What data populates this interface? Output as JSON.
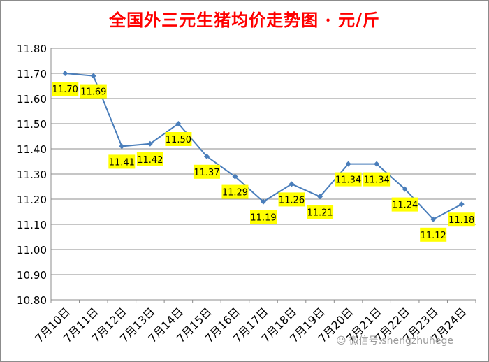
{
  "chart_data": {
    "type": "line",
    "title": "全国外三元生猪均价走势图 · 元/斤",
    "xlabel": "",
    "ylabel": "",
    "categories": [
      "7月10日",
      "7月11日",
      "7月12日",
      "7月13日",
      "7月14日",
      "7月15日",
      "7月16日",
      "7月17日",
      "7月18日",
      "7月19日",
      "7月20日",
      "7月21日",
      "7月22日",
      "7月23日",
      "7月24日"
    ],
    "series": [
      {
        "values": [
          11.7,
          11.69,
          11.41,
          11.42,
          11.5,
          11.37,
          11.29,
          11.19,
          11.26,
          11.21,
          11.34,
          11.34,
          11.24,
          11.12,
          11.18
        ],
        "labels": [
          "11.70",
          "11.69",
          "11.41",
          "11.42",
          "11.50",
          "11.37",
          "11.29",
          "11.19",
          "11.26",
          "11.21",
          "11.34",
          "11.34",
          "11.24",
          "11.12",
          "11.18"
        ]
      }
    ],
    "ylim": [
      10.8,
      11.8
    ],
    "yticks": [
      "10.80",
      "10.90",
      "11.00",
      "11.10",
      "11.20",
      "11.30",
      "11.40",
      "11.50",
      "11.60",
      "11.70",
      "11.80"
    ],
    "grid": true,
    "legend": "none",
    "line_color": "#4a7ebb",
    "label_bg": "#ffff00"
  },
  "watermark": "微信号:shengzhuhege"
}
